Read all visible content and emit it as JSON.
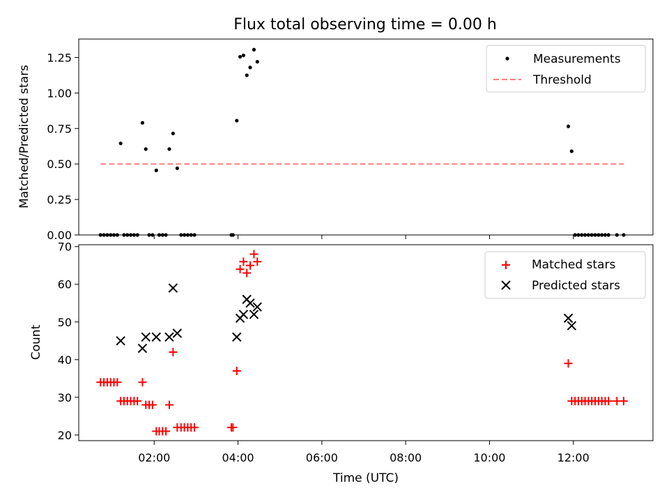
{
  "figure_title": "Flux total observing time = 0.00 h",
  "x_axis_label": "Time (UTC)",
  "x_ticks": [
    "02:00",
    "04:00",
    "06:00",
    "08:00",
    "10:00",
    "12:00"
  ],
  "colors": {
    "measurements": "#000000",
    "threshold": "#ff7f7f",
    "matched": "#ff0000",
    "predicted": "#000000"
  },
  "chart_data": [
    {
      "type": "scatter",
      "ylabel": "Matched/Predicted stars",
      "xlim_hours": [
        0.2,
        13.9
      ],
      "ylim": [
        0,
        1.38
      ],
      "yticks": [
        0.0,
        0.25,
        0.5,
        0.75,
        1.0,
        1.25
      ],
      "ytick_labels": [
        "0.00",
        "0.25",
        "0.50",
        "0.75",
        "1.00",
        "1.25"
      ],
      "legend_position": "top-right",
      "legend": [
        "Measurements",
        "Threshold"
      ],
      "threshold": {
        "name": "Threshold",
        "y": 0.5,
        "x_range_hours": [
          0.72,
          13.2
        ]
      },
      "series": [
        {
          "name": "Measurements",
          "points_hours": [
            [
              0.72,
              0
            ],
            [
              0.8,
              0
            ],
            [
              0.88,
              0
            ],
            [
              0.96,
              0
            ],
            [
              1.04,
              0
            ],
            [
              1.12,
              0
            ],
            [
              1.2,
              0.645
            ],
            [
              1.28,
              0
            ],
            [
              1.36,
              0
            ],
            [
              1.44,
              0
            ],
            [
              1.52,
              0
            ],
            [
              1.6,
              0
            ],
            [
              1.72,
              0.79
            ],
            [
              1.8,
              0.605
            ],
            [
              1.88,
              0
            ],
            [
              1.96,
              0
            ],
            [
              2.05,
              0.455
            ],
            [
              2.12,
              0
            ],
            [
              2.2,
              0
            ],
            [
              2.28,
              0
            ],
            [
              2.36,
              0.605
            ],
            [
              2.45,
              0.715
            ],
            [
              2.55,
              0.47
            ],
            [
              2.64,
              0
            ],
            [
              2.72,
              0
            ],
            [
              2.8,
              0
            ],
            [
              2.88,
              0
            ],
            [
              2.96,
              0
            ],
            [
              3.84,
              0
            ],
            [
              3.88,
              0
            ],
            [
              3.97,
              0.805
            ],
            [
              4.05,
              1.255
            ],
            [
              4.13,
              1.265
            ],
            [
              4.21,
              1.125
            ],
            [
              4.29,
              1.18
            ],
            [
              4.38,
              1.305
            ],
            [
              4.46,
              1.22
            ],
            [
              11.88,
              0.765
            ],
            [
              11.96,
              0.59
            ],
            [
              12.04,
              0
            ],
            [
              12.12,
              0
            ],
            [
              12.2,
              0
            ],
            [
              12.28,
              0
            ],
            [
              12.36,
              0
            ],
            [
              12.44,
              0
            ],
            [
              12.52,
              0
            ],
            [
              12.6,
              0
            ],
            [
              12.68,
              0
            ],
            [
              12.76,
              0
            ],
            [
              12.84,
              0
            ],
            [
              13.04,
              0
            ],
            [
              13.2,
              0
            ]
          ]
        }
      ]
    },
    {
      "type": "scatter",
      "ylabel": "Count",
      "xlim_hours": [
        0.2,
        13.9
      ],
      "ylim": [
        18.5,
        70.5
      ],
      "yticks": [
        20,
        30,
        40,
        50,
        60,
        70
      ],
      "legend_position": "top-right",
      "legend": [
        "Matched stars",
        "Predicted stars"
      ],
      "series": [
        {
          "name": "Matched stars",
          "points_hours": [
            [
              0.72,
              34
            ],
            [
              0.8,
              34
            ],
            [
              0.88,
              34
            ],
            [
              0.96,
              34
            ],
            [
              1.04,
              34
            ],
            [
              1.12,
              34
            ],
            [
              1.2,
              29
            ],
            [
              1.28,
              29
            ],
            [
              1.36,
              29
            ],
            [
              1.44,
              29
            ],
            [
              1.52,
              29
            ],
            [
              1.6,
              29
            ],
            [
              1.72,
              34
            ],
            [
              1.8,
              28
            ],
            [
              1.88,
              28
            ],
            [
              1.96,
              28
            ],
            [
              2.05,
              21
            ],
            [
              2.12,
              21
            ],
            [
              2.2,
              21
            ],
            [
              2.28,
              21
            ],
            [
              2.36,
              28
            ],
            [
              2.45,
              42
            ],
            [
              2.55,
              22
            ],
            [
              2.64,
              22
            ],
            [
              2.72,
              22
            ],
            [
              2.8,
              22
            ],
            [
              2.88,
              22
            ],
            [
              2.96,
              22
            ],
            [
              3.84,
              22
            ],
            [
              3.88,
              22
            ],
            [
              3.97,
              37
            ],
            [
              4.05,
              64
            ],
            [
              4.13,
              66
            ],
            [
              4.21,
              63
            ],
            [
              4.29,
              65
            ],
            [
              4.38,
              68
            ],
            [
              4.46,
              66
            ],
            [
              11.88,
              39
            ],
            [
              11.96,
              29
            ],
            [
              12.04,
              29
            ],
            [
              12.12,
              29
            ],
            [
              12.2,
              29
            ],
            [
              12.28,
              29
            ],
            [
              12.36,
              29
            ],
            [
              12.44,
              29
            ],
            [
              12.52,
              29
            ],
            [
              12.6,
              29
            ],
            [
              12.68,
              29
            ],
            [
              12.76,
              29
            ],
            [
              12.84,
              29
            ],
            [
              13.04,
              29
            ],
            [
              13.2,
              29
            ]
          ]
        },
        {
          "name": "Predicted stars",
          "points_hours": [
            [
              1.2,
              45
            ],
            [
              1.72,
              43
            ],
            [
              1.8,
              46
            ],
            [
              2.05,
              46
            ],
            [
              2.36,
              46
            ],
            [
              2.45,
              59
            ],
            [
              2.55,
              47
            ],
            [
              3.97,
              46
            ],
            [
              4.05,
              51
            ],
            [
              4.13,
              52
            ],
            [
              4.21,
              56
            ],
            [
              4.29,
              55
            ],
            [
              4.38,
              52
            ],
            [
              4.46,
              54
            ],
            [
              11.88,
              51
            ],
            [
              11.96,
              49
            ]
          ]
        }
      ]
    }
  ]
}
